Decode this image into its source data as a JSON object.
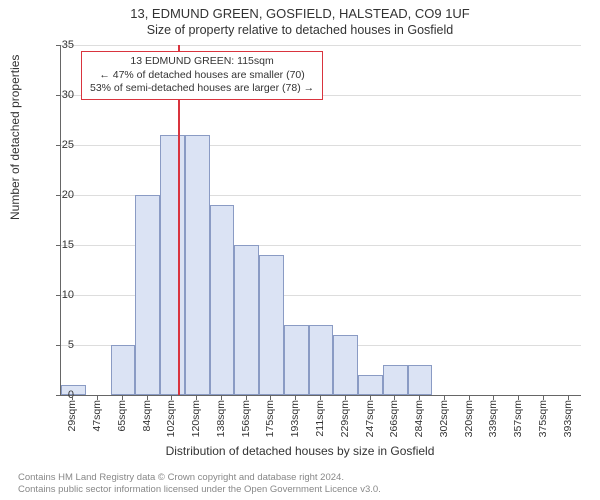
{
  "title_line1": "13, EDMUND GREEN, GOSFIELD, HALSTEAD, CO9 1UF",
  "title_line2": "Size of property relative to detached houses in Gosfield",
  "ylabel": "Number of detached properties",
  "xlabel": "Distribution of detached houses by size in Gosfield",
  "chart": {
    "type": "histogram",
    "ylim": [
      0,
      35
    ],
    "ytick_step": 5,
    "yticks": [
      0,
      5,
      10,
      15,
      20,
      25,
      30,
      35
    ],
    "xtick_labels": [
      "29sqm",
      "47sqm",
      "65sqm",
      "84sqm",
      "102sqm",
      "120sqm",
      "138sqm",
      "156sqm",
      "175sqm",
      "193sqm",
      "211sqm",
      "229sqm",
      "247sqm",
      "266sqm",
      "284sqm",
      "302sqm",
      "320sqm",
      "339sqm",
      "357sqm",
      "375sqm",
      "393sqm"
    ],
    "values": [
      1,
      0,
      5,
      20,
      26,
      26,
      19,
      15,
      14,
      7,
      7,
      6,
      2,
      3,
      3,
      0,
      0,
      0,
      0,
      0,
      0
    ],
    "bar_fill": "#dbe3f4",
    "bar_border": "#8a9bc4",
    "grid_color": "#dddddd",
    "axis_color": "#666666",
    "background_color": "#ffffff",
    "marker": {
      "value_sqm": 115,
      "color": "#d9343e",
      "annotation_lines": [
        "13 EDMUND GREEN: 115sqm",
        "← 47% of detached houses are smaller (70)",
        "53% of semi-detached houses are larger (78) →"
      ]
    }
  },
  "footer_line1": "Contains HM Land Registry data © Crown copyright and database right 2024.",
  "footer_line2": "Contains public sector information licensed under the Open Government Licence v3.0."
}
